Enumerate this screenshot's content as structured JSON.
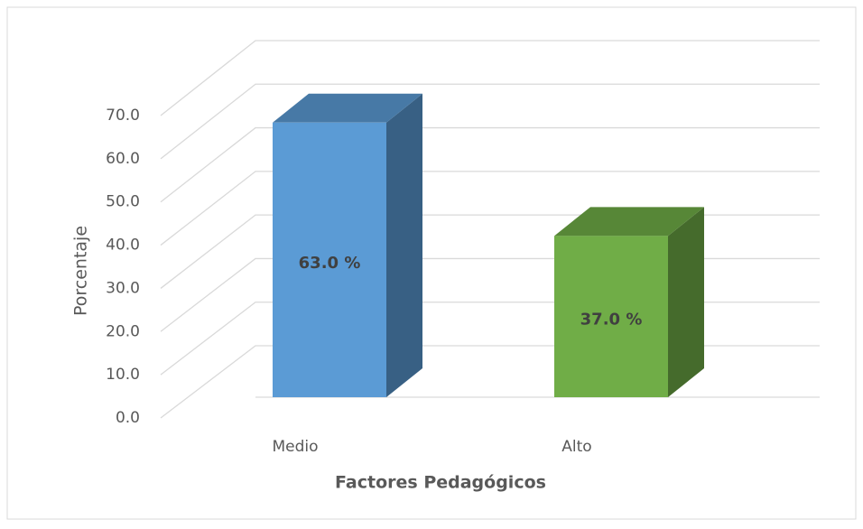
{
  "chart_data": {
    "type": "bar3d",
    "categories": [
      "Medio",
      "Alto"
    ],
    "values": [
      63,
      37
    ],
    "value_labels": [
      "63.0 %",
      "37.0 %"
    ],
    "colors": [
      "#5b9bd5",
      "#70ad47"
    ],
    "ylim": [
      0,
      70
    ],
    "yticks": [
      {
        "value": 0,
        "label": "0.0"
      },
      {
        "value": 10,
        "label": "10.0"
      },
      {
        "value": 20,
        "label": "20.0"
      },
      {
        "value": 30,
        "label": "30.0"
      },
      {
        "value": 40,
        "label": "40.0"
      },
      {
        "value": 50,
        "label": "50.0"
      },
      {
        "value": 60,
        "label": "60.0"
      },
      {
        "value": 70,
        "label": "70.0"
      }
    ],
    "y_label": "Porcentaje",
    "x_label": "Factores Pedagógicos",
    "grid": true
  }
}
